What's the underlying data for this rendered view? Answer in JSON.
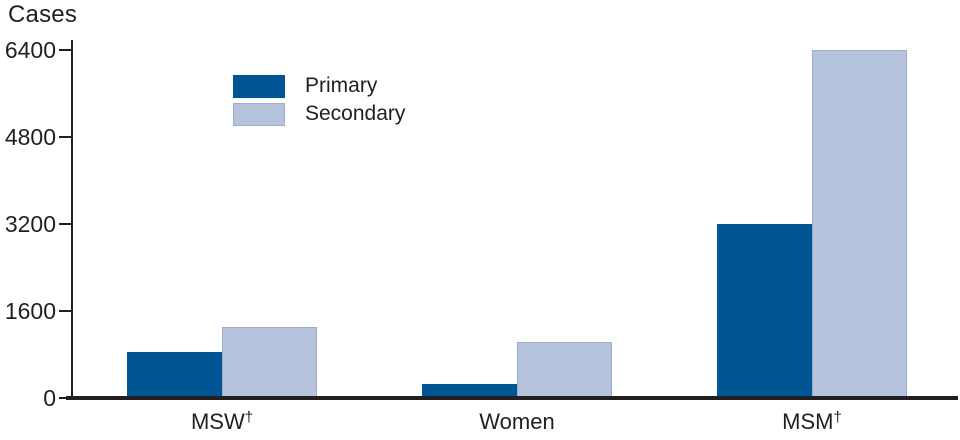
{
  "chart": {
    "title": "Cases"
  },
  "colors": {
    "primary_bar": "#005595",
    "secondary_bar": "#B5C4DC",
    "secondary_bar_border": "#9DADC9",
    "axis": "#231F20",
    "text": "#231F20",
    "background": "#FFFFFF"
  },
  "chart_data": {
    "type": "bar",
    "title": "Cases",
    "xlabel": "",
    "ylabel": "Cases",
    "categories": [
      "MSW†",
      "Women",
      "MSM†"
    ],
    "category_parts": [
      {
        "text": "MSW",
        "sup": "†"
      },
      {
        "text": "Women",
        "sup": ""
      },
      {
        "text": "MSM",
        "sup": "†"
      }
    ],
    "series": [
      {
        "name": "Primary",
        "color": "#005595",
        "values": [
          840,
          250,
          3200
        ]
      },
      {
        "name": "Secondary",
        "color": "#B5C4DC",
        "border": "#9DADC9",
        "values": [
          1310,
          1030,
          6400
        ]
      }
    ],
    "yticks": [
      0,
      1600,
      3200,
      4800,
      6400
    ],
    "ylim": [
      0,
      6400
    ],
    "grid": false,
    "legend_position": "upper-left-inside"
  }
}
